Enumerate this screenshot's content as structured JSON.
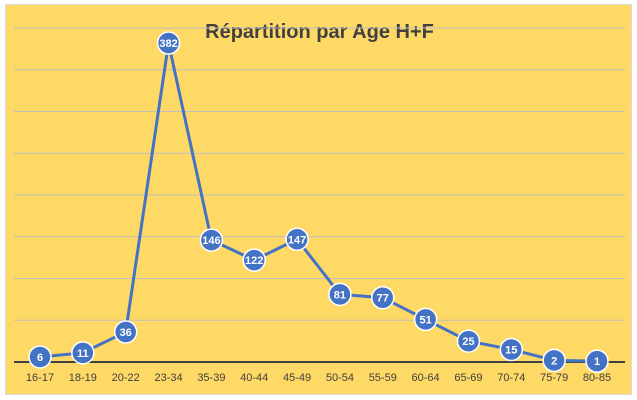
{
  "chart_data": {
    "type": "line",
    "title": "Répartition par Age H+F",
    "xlabel": "",
    "ylabel": "",
    "categories": [
      "16-17",
      "18-19",
      "20-22",
      "23-34",
      "35-39",
      "40-44",
      "45-49",
      "50-54",
      "55-59",
      "60-64",
      "65-69",
      "70-74",
      "75-79",
      "80-85"
    ],
    "series": [
      {
        "values": [
          6,
          11,
          36,
          382,
          146,
          122,
          147,
          81,
          77,
          51,
          25,
          15,
          2,
          1
        ]
      }
    ],
    "ylim": [
      0,
      400
    ],
    "grid": true,
    "legend": "none",
    "data_labels": true,
    "colors": {
      "background": "#FFD966",
      "line": "#4472C4",
      "marker": "#4472C4",
      "marker_text": "#FFFFFF",
      "axis": "#404040",
      "gridline": "#BFBFBF"
    }
  }
}
